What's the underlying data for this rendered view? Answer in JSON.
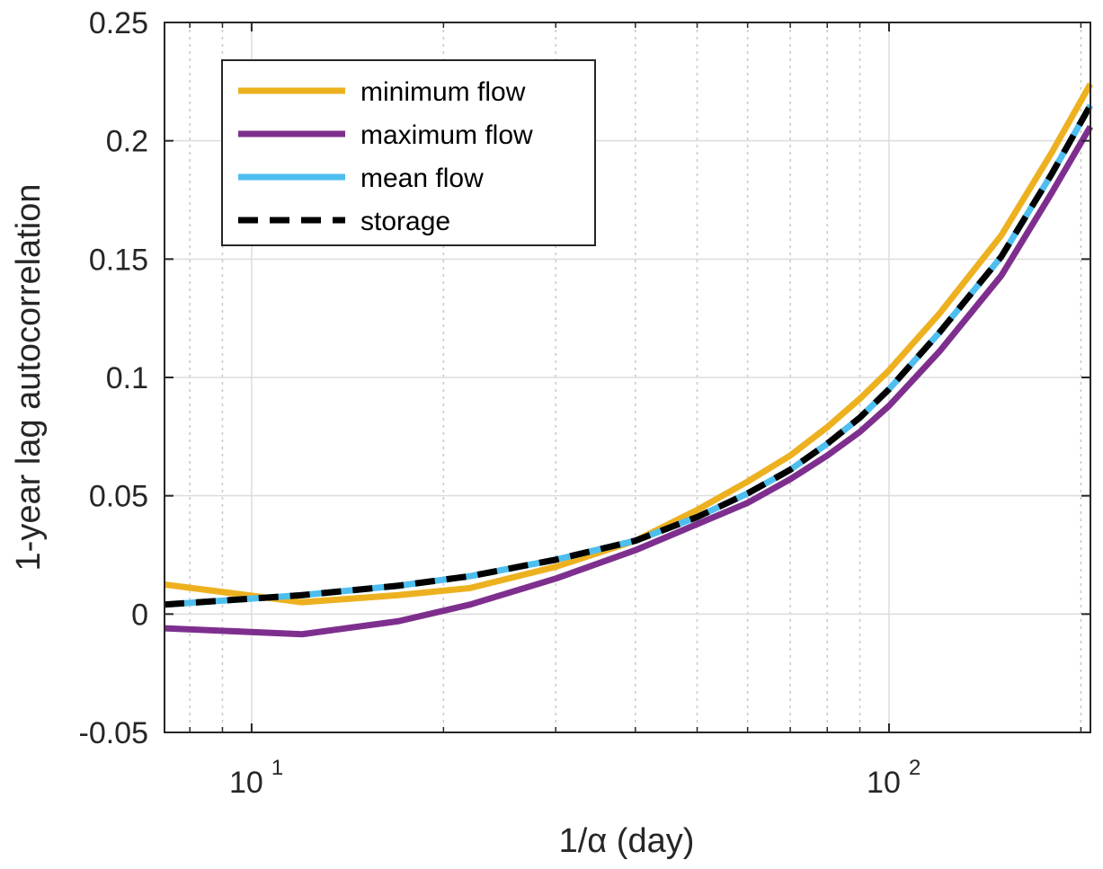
{
  "chart_data": {
    "type": "line",
    "title": "",
    "xlabel": "1/α (day)",
    "ylabel": "1-year lag autocorrelation",
    "x_scale": "log",
    "xlim": [
      7.3,
      207
    ],
    "ylim": [
      -0.05,
      0.25
    ],
    "y_ticks": [
      -0.05,
      0,
      0.05,
      0.1,
      0.15,
      0.2,
      0.25
    ],
    "y_tick_labels": [
      "-0.05",
      "0",
      "0.05",
      "0.1",
      "0.15",
      "0.2",
      "0.25"
    ],
    "x_ticks": [
      10,
      100
    ],
    "x_tick_labels": [
      {
        "base": "10",
        "exp": "1"
      },
      {
        "base": "10",
        "exp": "2"
      }
    ],
    "grid": true,
    "minor_grid": true,
    "legend_position": "top-left",
    "series": [
      {
        "name": "minimum flow",
        "color": "#EDB120",
        "style": "solid",
        "x": [
          7.3,
          12,
          17,
          22,
          30,
          40,
          50,
          60,
          70,
          80,
          90,
          100,
          120,
          150,
          180,
          207
        ],
        "y": [
          0.0125,
          0.005,
          0.008,
          0.011,
          0.02,
          0.031,
          0.044,
          0.056,
          0.067,
          0.079,
          0.091,
          0.103,
          0.127,
          0.16,
          0.195,
          0.224
        ]
      },
      {
        "name": "maximum flow",
        "color": "#7E2F8E",
        "style": "solid",
        "x": [
          7.3,
          12,
          17,
          22,
          30,
          40,
          50,
          60,
          70,
          80,
          90,
          100,
          120,
          150,
          180,
          207
        ],
        "y": [
          -0.006,
          -0.0085,
          -0.003,
          0.004,
          0.015,
          0.027,
          0.038,
          0.047,
          0.057,
          0.067,
          0.077,
          0.088,
          0.111,
          0.143,
          0.178,
          0.206
        ]
      },
      {
        "name": "mean flow",
        "color": "#4DBEEE",
        "style": "solid",
        "x": [
          7.3,
          12,
          17,
          22,
          30,
          40,
          50,
          60,
          70,
          80,
          90,
          100,
          120,
          150,
          180,
          207
        ],
        "y": [
          0.004,
          0.008,
          0.012,
          0.016,
          0.023,
          0.031,
          0.041,
          0.051,
          0.061,
          0.072,
          0.083,
          0.095,
          0.119,
          0.151,
          0.186,
          0.215
        ]
      },
      {
        "name": "storage",
        "color": "#000000",
        "style": "dashed",
        "x": [
          7.3,
          12,
          17,
          22,
          30,
          40,
          50,
          60,
          70,
          80,
          90,
          100,
          120,
          150,
          180,
          207
        ],
        "y": [
          0.004,
          0.008,
          0.012,
          0.016,
          0.023,
          0.031,
          0.041,
          0.051,
          0.061,
          0.072,
          0.083,
          0.095,
          0.119,
          0.151,
          0.186,
          0.215
        ]
      }
    ]
  }
}
